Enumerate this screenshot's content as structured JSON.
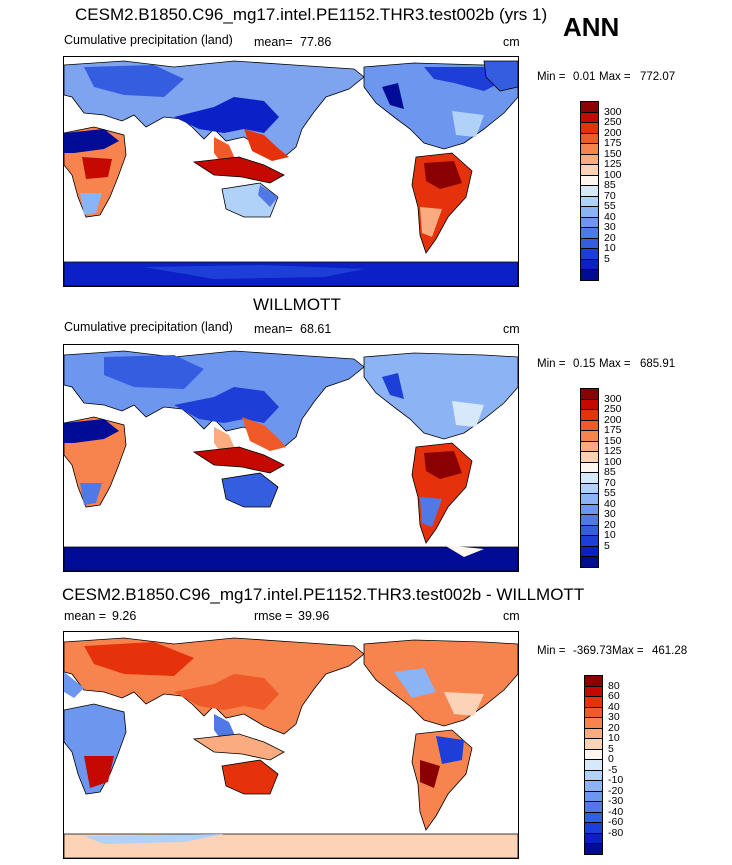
{
  "season": "ANN",
  "colorbar_colors": [
    "#8b0000",
    "#c40a00",
    "#e6320a",
    "#f05a28",
    "#f7834e",
    "#fbab80",
    "#fdd3b8",
    "#fff6ef",
    "#d7e8fb",
    "#b0d1f8",
    "#8cb4f4",
    "#6d96ee",
    "#5179e6",
    "#345de0",
    "#1d3fd8",
    "#0c20c8",
    "#000c96"
  ],
  "panels": [
    {
      "title": "CESM2.B1850.C96_mg17.intel.PE1152.THR3.test002b (yrs 1)",
      "left_label": "Cumulative precipitation (land)",
      "stat_label": "mean=",
      "stat_value": "77.86",
      "rmse_label": "",
      "rmse_value": "",
      "units": "cm",
      "min_label": "Min =",
      "min_value": "0.01",
      "max_label": "Max =",
      "max_value": "772.07",
      "colorbar_labels": [
        "300",
        "250",
        "200",
        "175",
        "150",
        "125",
        "100",
        "85",
        "70",
        "55",
        "40",
        "30",
        "20",
        "10",
        "5"
      ]
    },
    {
      "title": "WILLMOTT",
      "left_label": "Cumulative precipitation (land)",
      "stat_label": "mean=",
      "stat_value": "68.61",
      "rmse_label": "",
      "rmse_value": "",
      "units": "cm",
      "min_label": "Min =",
      "min_value": "0.15",
      "max_label": "Max =",
      "max_value": "685.91",
      "colorbar_labels": [
        "300",
        "250",
        "200",
        "175",
        "150",
        "125",
        "100",
        "85",
        "70",
        "55",
        "40",
        "30",
        "20",
        "10",
        "5"
      ]
    },
    {
      "title": "CESM2.B1850.C96_mg17.intel.PE1152.THR3.test002b - WILLMOTT",
      "left_label": "mean =",
      "stat_label": "",
      "stat_value": "9.26",
      "rmse_label": "rmse =",
      "rmse_value": "39.96",
      "units": "cm",
      "min_label": "Min =",
      "min_value": "-369.73",
      "max_label": "Max =",
      "max_value": "461.28",
      "colorbar_labels": [
        "80",
        "60",
        "40",
        "30",
        "20",
        "10",
        "5",
        "0",
        "-5",
        "-10",
        "-20",
        "-30",
        "-40",
        "-60",
        "-80"
      ]
    }
  ]
}
